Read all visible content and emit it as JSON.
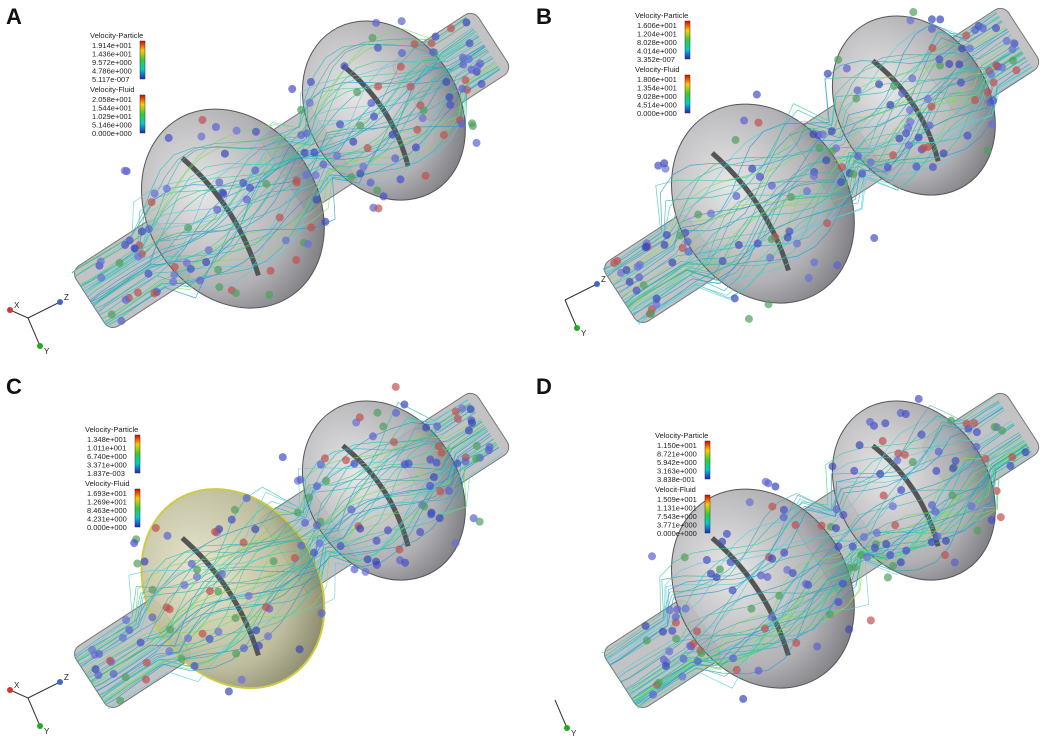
{
  "panels": [
    {
      "label": "A",
      "particle_title": "Velocity-Particle",
      "particle_values": [
        "1.914e+001",
        "1.436e+001",
        "9.572e+000",
        "4.786e+000",
        "5.117e-007"
      ],
      "fluid_title": "Velocity-Fluid",
      "fluid_values": [
        "2.058e+001",
        "1.544e+001",
        "1.029e+001",
        "5.146e+000",
        "0.000e+000"
      ],
      "axes": [
        "X",
        "Z",
        "Y"
      ]
    },
    {
      "label": "B",
      "particle_title": "Velocity-Particle",
      "particle_values": [
        "1.606e+001",
        "1.204e+001",
        "8.028e+000",
        "4.014e+000",
        "3.352e-007"
      ],
      "fluid_title": "Velocity-Fluid",
      "fluid_values": [
        "1.806e+001",
        "1.354e+001",
        "9.028e+000",
        "4.514e+000",
        "0.000e+000"
      ],
      "axes": [
        "Z",
        "Y"
      ]
    },
    {
      "label": "C",
      "particle_title": "Velocity-Particle",
      "particle_values": [
        "1.348e+001",
        "1.011e+001",
        "6.740e+000",
        "3.371e+000",
        "1.837e-003"
      ],
      "fluid_title": "Velocity-Fluid",
      "fluid_values": [
        "1.693e+001",
        "1.269e+001",
        "8.463e+000",
        "4.231e+000",
        "0.000e+000"
      ],
      "axes": [
        "X",
        "Z",
        "Y"
      ]
    },
    {
      "label": "D",
      "particle_title": "Velocity-Particle",
      "particle_values": [
        "1.150e+001",
        "8.721e+000",
        "5.942e+000",
        "3.163e+000",
        "3.838e-001"
      ],
      "fluid_title": "Velocit-Fluid",
      "fluid_values": [
        "1.509e+001",
        "1.131e+001",
        "7.543e+000",
        "3.771e+000",
        "0.000e+000"
      ],
      "axes": [
        "Y"
      ]
    }
  ]
}
